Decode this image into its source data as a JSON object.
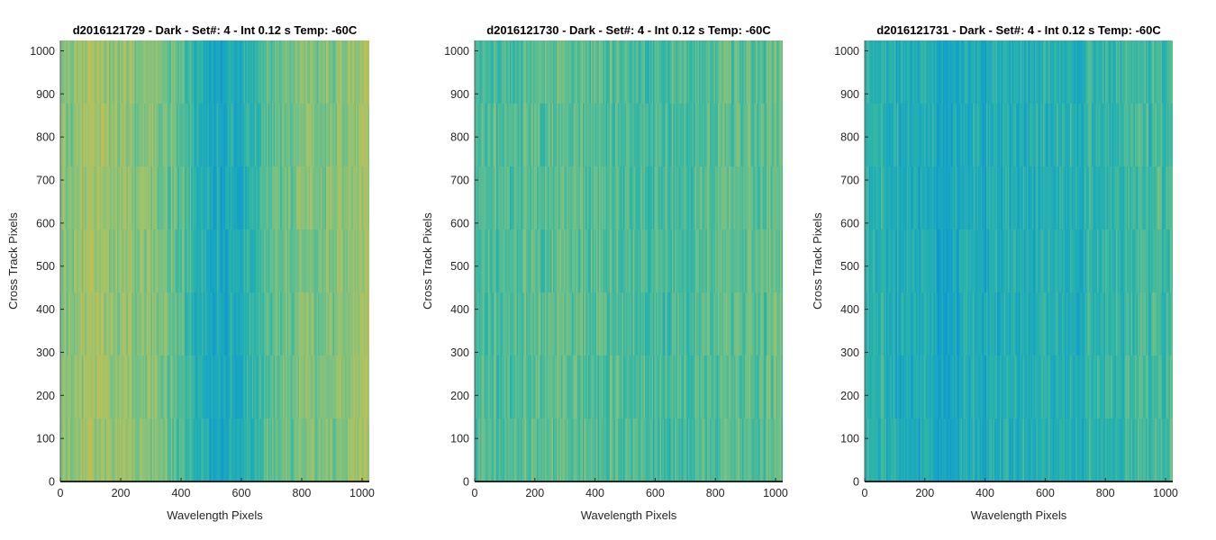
{
  "colormap": {
    "name": "parula-like",
    "stops": [
      "#0c88d8",
      "#14a2c8",
      "#2db5a8",
      "#6cc08a",
      "#a8c267",
      "#cfbd45"
    ]
  },
  "chart_data": [
    {
      "type": "heatmap",
      "title": "d2016121729 - Dark - Set#: 4 - Int 0.12 s Temp: -60C",
      "xlabel": "Wavelength Pixels",
      "ylabel": "Cross Track Pixels",
      "xlim": [
        0,
        1024
      ],
      "ylim": [
        0,
        1024
      ],
      "xticks": [
        0,
        200,
        400,
        600,
        800,
        1000
      ],
      "yticks": [
        0,
        100,
        200,
        300,
        400,
        500,
        600,
        700,
        800,
        900,
        1000
      ],
      "column_profile": {
        "x": [
          0,
          100,
          200,
          300,
          400,
          450,
          500,
          550,
          600,
          650,
          700,
          800,
          900,
          1024
        ],
        "level": [
          0.68,
          0.78,
          0.74,
          0.68,
          0.55,
          0.4,
          0.25,
          0.25,
          0.35,
          0.45,
          0.55,
          0.65,
          0.68,
          0.8
        ]
      }
    },
    {
      "type": "heatmap",
      "title": "d2016121730 - Dark - Set#: 4 - Int 0.12 s Temp: -60C",
      "xlabel": "Wavelength Pixels",
      "ylabel": "Cross Track Pixels",
      "xlim": [
        0,
        1024
      ],
      "ylim": [
        0,
        1024
      ],
      "xticks": [
        0,
        200,
        400,
        600,
        800,
        1000
      ],
      "yticks": [
        0,
        100,
        200,
        300,
        400,
        500,
        600,
        700,
        800,
        900,
        1000
      ],
      "column_profile": {
        "x": [
          0,
          100,
          200,
          300,
          400,
          500,
          600,
          700,
          800,
          900,
          1024
        ],
        "level": [
          0.5,
          0.52,
          0.55,
          0.57,
          0.55,
          0.5,
          0.47,
          0.5,
          0.53,
          0.56,
          0.58
        ]
      }
    },
    {
      "type": "heatmap",
      "title": "d2016121731 - Dark - Set#: 4 - Int 0.12 s Temp: -60C",
      "xlabel": "Wavelength Pixels",
      "ylabel": "Cross Track Pixels",
      "xlim": [
        0,
        1024
      ],
      "ylim": [
        0,
        1024
      ],
      "xticks": [
        0,
        200,
        400,
        600,
        800,
        1000
      ],
      "yticks": [
        0,
        100,
        200,
        300,
        400,
        500,
        600,
        700,
        800,
        900,
        1000
      ],
      "column_profile": {
        "x": [
          0,
          100,
          200,
          300,
          400,
          500,
          600,
          700,
          800,
          900,
          1024
        ],
        "level": [
          0.38,
          0.33,
          0.27,
          0.28,
          0.3,
          0.32,
          0.34,
          0.35,
          0.4,
          0.45,
          0.48
        ]
      }
    }
  ]
}
